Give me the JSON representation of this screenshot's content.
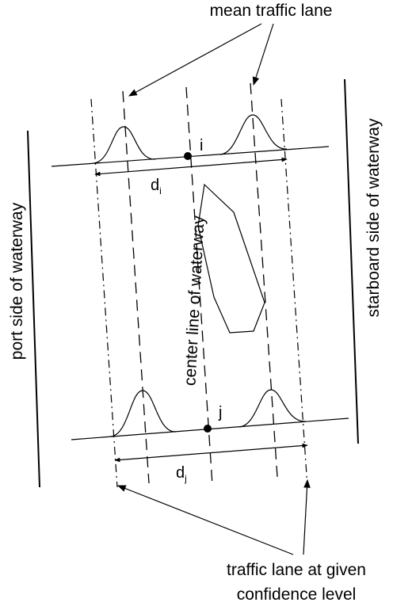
{
  "labels": {
    "mean_lane": "mean traffic lane",
    "point_i": "i",
    "point_j": "j",
    "d_i": {
      "base": "d",
      "sub": "i"
    },
    "d_j": {
      "base": "d",
      "sub": "j"
    },
    "center_line": "center line of waterway",
    "port_side": "port side of waterway",
    "starboard_side": "starboard side of waterway",
    "confidence_lane": [
      "traffic lane at given",
      "confidence level"
    ]
  }
}
